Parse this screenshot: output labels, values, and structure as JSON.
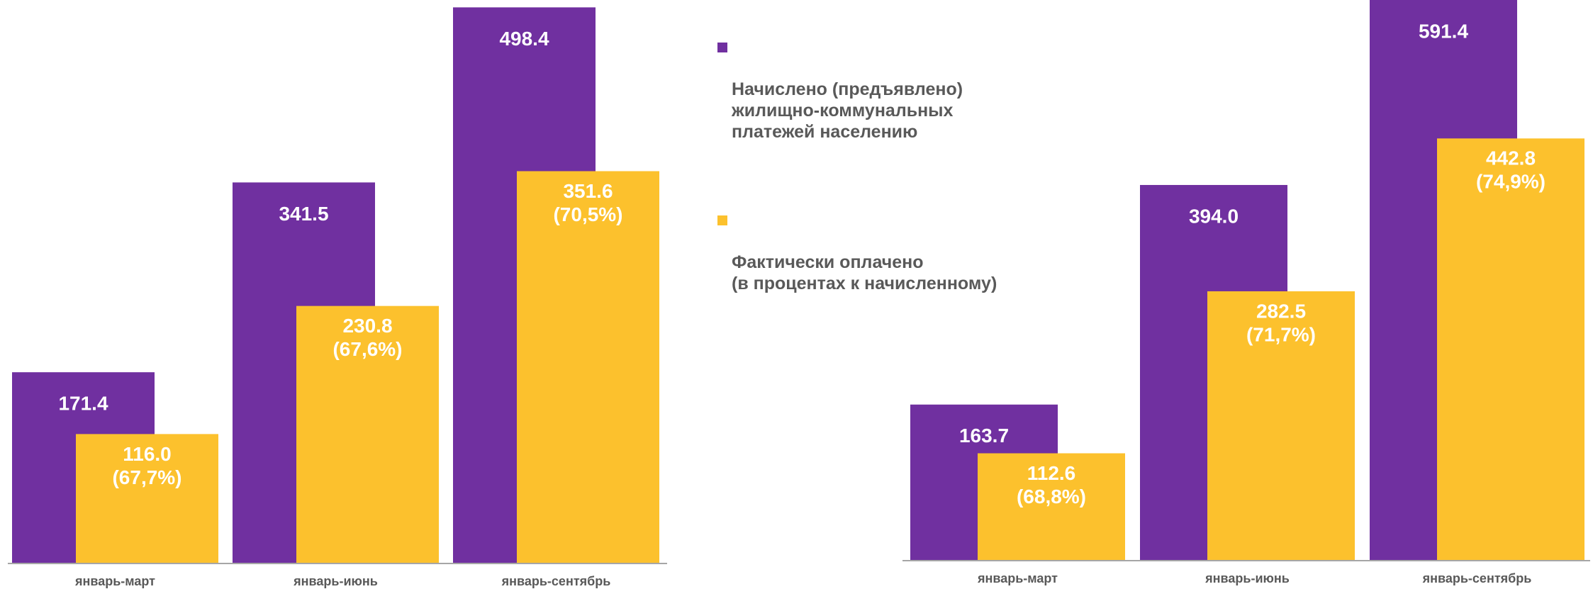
{
  "chart_data": [
    {
      "type": "bar",
      "categories": [
        "январь-март",
        "январь-июнь",
        "январь-сентябрь"
      ],
      "ylim": [
        0,
        505
      ],
      "series": [
        {
          "values": [
            171.4,
            341.5,
            498.4
          ]
        },
        {
          "values": [
            116.0,
            230.8,
            351.6
          ],
          "value_labels": [
            "116.0",
            "230.8",
            "351.6"
          ],
          "shares": [
            67.7,
            67.6,
            70.5
          ],
          "share_labels": [
            "(67,7%)",
            "(67,6%)",
            "(70,5%)"
          ]
        }
      ]
    },
    {
      "type": "bar",
      "categories": [
        "январь-март",
        "январь-июнь",
        "январь-сентябрь"
      ],
      "ylim": [
        0,
        588
      ],
      "series": [
        {
          "values": [
            163.7,
            394.0,
            591.4
          ],
          "value_labels": [
            "163.7",
            "394.0",
            "591.4"
          ]
        },
        {
          "values": [
            112.6,
            282.5,
            442.8
          ],
          "value_labels": [
            "112.6",
            "282.5",
            "442.8"
          ],
          "shares": [
            68.8,
            71.7,
            74.9
          ],
          "share_labels": [
            "(68,8%)",
            "(71,7%)",
            "(74,9%)"
          ]
        }
      ]
    }
  ],
  "legend": [
    {
      "name": "Начислено (предъявлено)\nжилищно-коммунальных\nплатежей населению",
      "color": "#7030a0"
    },
    {
      "name": "Фактически оплачено\n(в процентах к начисленному)",
      "color": "#fcc12d"
    }
  ]
}
